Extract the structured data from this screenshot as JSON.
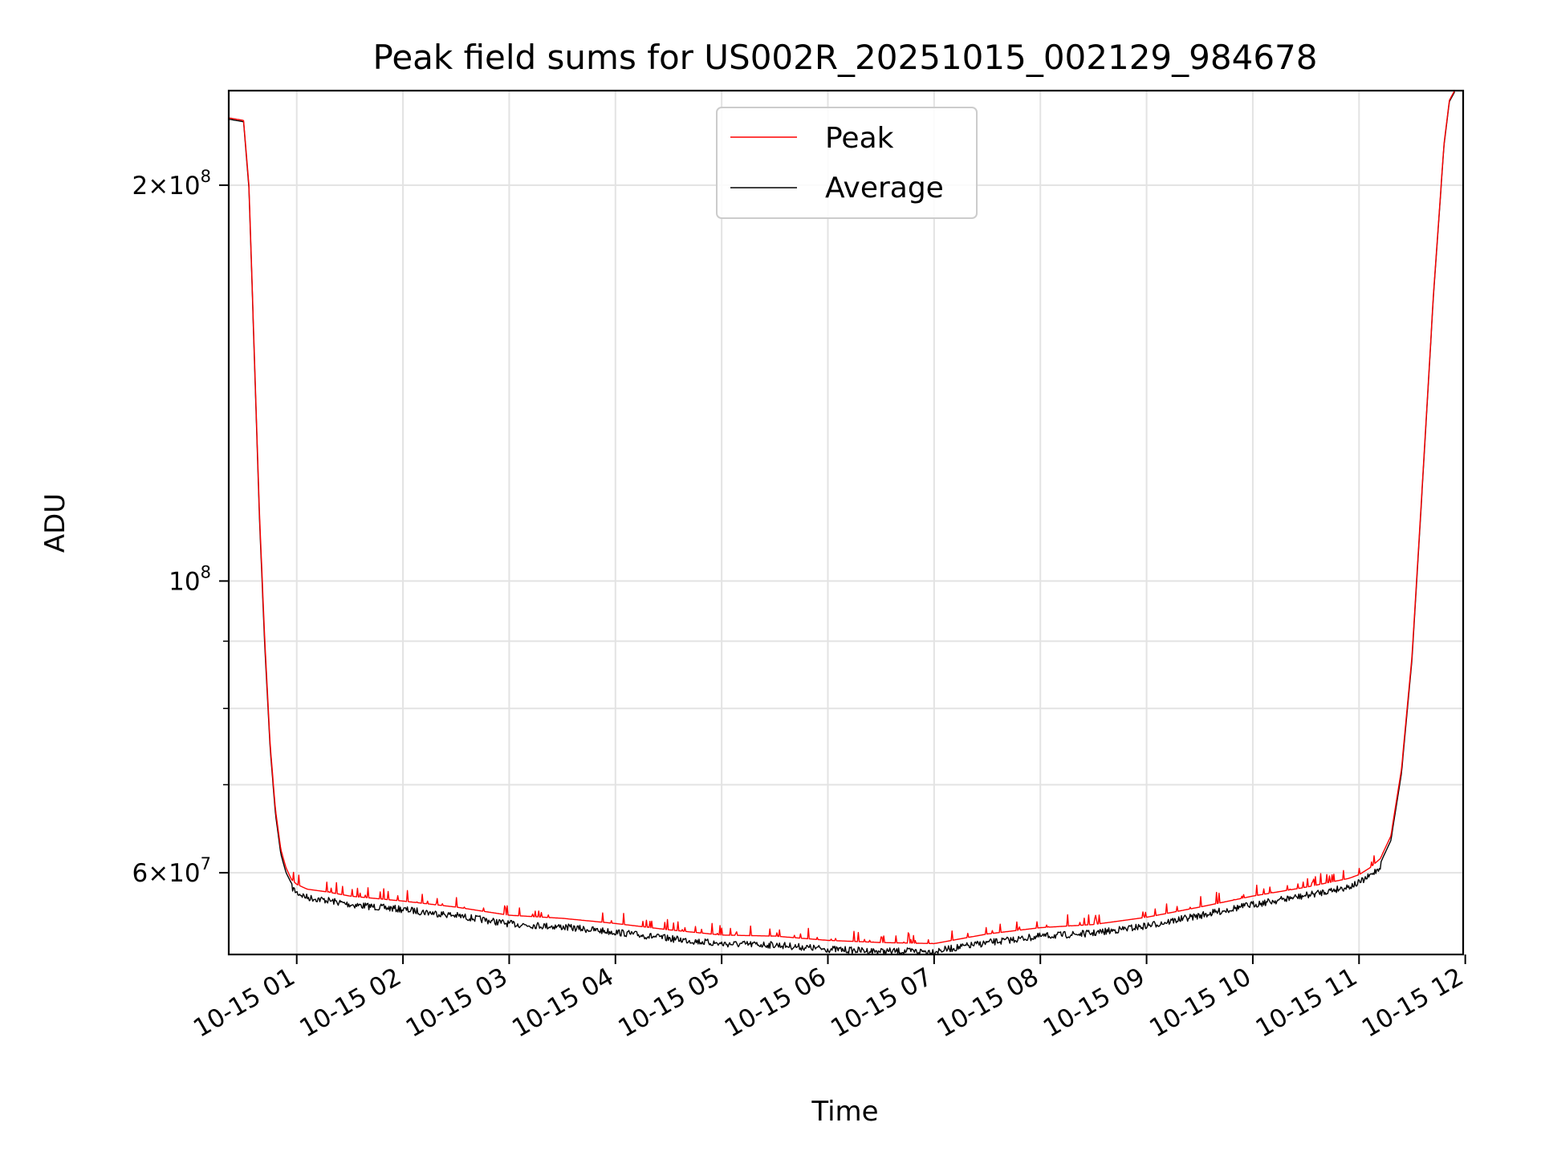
{
  "chart_data": {
    "type": "line",
    "title": "Peak field sums for US002R_20251015_002129_984678",
    "xlabel": "Time",
    "ylabel": "ADU",
    "yscale": "log",
    "grid": true,
    "legend_position": "top-center",
    "xlim_hours": [
      0.36,
      11.98
    ],
    "ylim": [
      52000000,
      236000000
    ],
    "x_ticks": [
      {
        "hour": 1,
        "label": "10-15 01"
      },
      {
        "hour": 2,
        "label": "10-15 02"
      },
      {
        "hour": 3,
        "label": "10-15 03"
      },
      {
        "hour": 4,
        "label": "10-15 04"
      },
      {
        "hour": 5,
        "label": "10-15 05"
      },
      {
        "hour": 6,
        "label": "10-15 06"
      },
      {
        "hour": 7,
        "label": "10-15 07"
      },
      {
        "hour": 8,
        "label": "10-15 08"
      },
      {
        "hour": 9,
        "label": "10-15 09"
      },
      {
        "hour": 10,
        "label": "10-15 10"
      },
      {
        "hour": 11,
        "label": "10-15 11"
      },
      {
        "hour": 12,
        "label": "10-15 12"
      }
    ],
    "y_major_ticks": [
      {
        "value": 60000000,
        "mantissa": "6",
        "exponent": "7"
      },
      {
        "value": 100000000,
        "mantissa": "",
        "exponent": "8"
      },
      {
        "value": 200000000,
        "mantissa": "2",
        "exponent": "8"
      }
    ],
    "y_minor_ticks": [
      70000000,
      80000000,
      90000000
    ],
    "series": [
      {
        "name": "Peak",
        "color": "#ff0000",
        "x_hours": [
          0.36,
          0.5,
          0.55,
          0.6,
          0.65,
          0.7,
          0.75,
          0.8,
          0.85,
          0.9,
          0.95,
          1.0,
          1.1,
          1.3,
          1.5,
          2.0,
          2.5,
          3.0,
          3.5,
          4.0,
          4.5,
          5.0,
          5.5,
          6.0,
          6.5,
          7.0,
          7.5,
          8.0,
          8.5,
          9.0,
          9.5,
          10.0,
          10.5,
          10.9,
          11.0,
          11.1,
          11.2,
          11.3,
          11.4,
          11.5,
          11.6,
          11.7,
          11.8,
          11.85,
          11.9
        ],
        "values": [
          225000000,
          224000000,
          200000000,
          150000000,
          112000000,
          90000000,
          75000000,
          67000000,
          62500000,
          60500000,
          59300000,
          58800000,
          58300000,
          58000000,
          57600000,
          57100000,
          56500000,
          55700000,
          55400000,
          54900000,
          54300000,
          53800000,
          53700000,
          53300000,
          53100000,
          53000000,
          53900000,
          54500000,
          54800000,
          55500000,
          56500000,
          57600000,
          58500000,
          59400000,
          59800000,
          60500000,
          61500000,
          64000000,
          72000000,
          88000000,
          120000000,
          165000000,
          215000000,
          232000000,
          236000000
        ]
      },
      {
        "name": "Average",
        "color": "#000000",
        "x_hours": [
          0.36,
          0.5,
          0.55,
          0.6,
          0.65,
          0.7,
          0.75,
          0.8,
          0.85,
          0.9,
          0.95,
          1.0,
          1.1,
          1.3,
          1.5,
          2.0,
          2.5,
          3.0,
          3.5,
          4.0,
          4.5,
          5.0,
          5.5,
          6.0,
          6.5,
          7.0,
          7.5,
          8.0,
          8.5,
          9.0,
          9.5,
          10.0,
          10.5,
          10.9,
          11.0,
          11.1,
          11.2,
          11.3,
          11.4,
          11.5,
          11.6,
          11.7,
          11.8,
          11.85,
          11.9
        ],
        "values": [
          224500000,
          223500000,
          199000000,
          149000000,
          111000000,
          89000000,
          74500000,
          66500000,
          62000000,
          60000000,
          58900000,
          58300000,
          57800000,
          57500000,
          57100000,
          56600000,
          56000000,
          55200000,
          54900000,
          54400000,
          53800000,
          53300000,
          53200000,
          52800000,
          52600000,
          52600000,
          53400000,
          54000000,
          54300000,
          55000000,
          56000000,
          57100000,
          58000000,
          58900000,
          59300000,
          60000000,
          61000000,
          63500000,
          71500000,
          87500000,
          119500000,
          164500000,
          214500000,
          231500000,
          235500000
        ]
      }
    ]
  }
}
